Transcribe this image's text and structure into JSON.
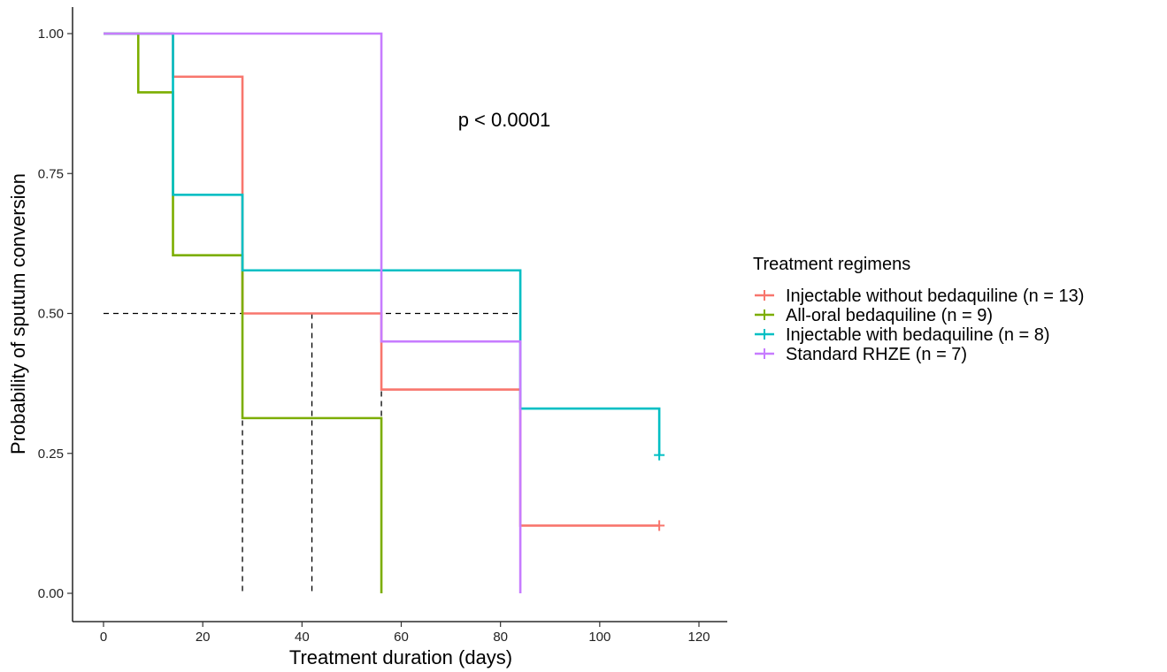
{
  "chart_data": {
    "type": "line",
    "step": true,
    "title": "",
    "xlabel": "Treatment duration (days)",
    "ylabel": "Probability of sputum conversion",
    "xlim": [
      -6,
      126
    ],
    "ylim": [
      -0.05,
      1.05
    ],
    "xticks": [
      0,
      20,
      40,
      60,
      80,
      100,
      120
    ],
    "yticks": [
      0.0,
      0.25,
      0.5,
      0.75,
      1.0
    ],
    "xtick_labels": [
      "0",
      "20",
      "40",
      "60",
      "80",
      "100",
      "120"
    ],
    "ytick_labels": [
      "0.00",
      "0.25",
      "0.50",
      "0.75",
      "1.00"
    ],
    "grid": false,
    "annotation": "p < 0.0001",
    "legend": {
      "title": "Treatment regimens",
      "placement": "right"
    },
    "series": [
      {
        "name": "Injectable without bedaquiline (n = 13)",
        "color": "#f8766d",
        "points": [
          [
            0,
            1.0
          ],
          [
            14,
            0.923
          ],
          [
            28,
            0.5
          ],
          [
            56,
            0.364
          ],
          [
            84,
            0.121
          ],
          [
            112,
            0.121
          ]
        ],
        "censored": [
          [
            112,
            0.121
          ]
        ]
      },
      {
        "name": "All-oral bedaquiline (n = 9)",
        "color": "#7cae00",
        "points": [
          [
            0,
            1.0
          ],
          [
            7,
            0.895
          ],
          [
            14,
            0.604
          ],
          [
            28,
            0.313
          ],
          [
            56,
            0.0
          ]
        ],
        "censored": []
      },
      {
        "name": "Injectable with bedaquiline (n = 8)",
        "color": "#00bfc4",
        "points": [
          [
            0,
            1.0
          ],
          [
            14,
            0.712
          ],
          [
            28,
            0.577
          ],
          [
            84,
            0.33
          ],
          [
            112,
            0.247
          ]
        ],
        "censored": [
          [
            112,
            0.247
          ]
        ]
      },
      {
        "name": "Standard RHZE (n = 7)",
        "color": "#c77cff",
        "points": [
          [
            0,
            1.0
          ],
          [
            56,
            0.45
          ],
          [
            84,
            0.0
          ]
        ],
        "censored": []
      }
    ],
    "median_lines": [
      {
        "x": 28,
        "color": "#000000"
      },
      {
        "x": 42,
        "color": "#000000"
      },
      {
        "x": 56,
        "color": "#000000"
      },
      {
        "x": 84,
        "color": "#000000"
      }
    ],
    "median_level": 0.5
  }
}
